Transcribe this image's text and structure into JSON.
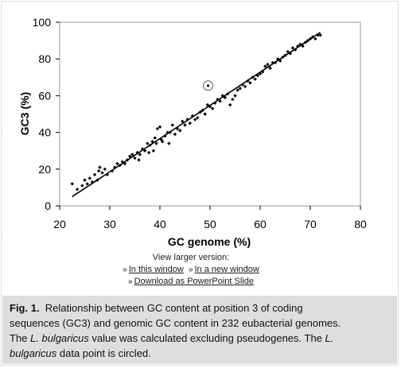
{
  "chart_data": {
    "type": "scatter",
    "xlabel": "GC genome (%)",
    "ylabel": "GC3 (%)",
    "xlim": [
      20,
      80
    ],
    "ylim": [
      0,
      100
    ],
    "xticks": [
      "20",
      "30",
      "40",
      "50",
      "60",
      "70",
      "80"
    ],
    "yticks": [
      "0",
      "20",
      "40",
      "60",
      "80",
      "100"
    ],
    "highlight_point": {
      "x": 49.6,
      "y": 65.5,
      "label": "L. bulgaricus (circled)"
    },
    "trendline": {
      "x": [
        22.5,
        72
      ],
      "y": [
        5,
        94.5
      ]
    },
    "points": [
      [
        22.5,
        12
      ],
      [
        23.5,
        9
      ],
      [
        24.5,
        11
      ],
      [
        25,
        14
      ],
      [
        25.5,
        12
      ],
      [
        26,
        15
      ],
      [
        26.5,
        13
      ],
      [
        27,
        17
      ],
      [
        27.5,
        14
      ],
      [
        27.8,
        19
      ],
      [
        28,
        21
      ],
      [
        28.5,
        18
      ],
      [
        29,
        20
      ],
      [
        29.5,
        17
      ],
      [
        30.5,
        19
      ],
      [
        31,
        21
      ],
      [
        31.5,
        23
      ],
      [
        32,
        22
      ],
      [
        32.5,
        24
      ],
      [
        33,
        23
      ],
      [
        33.5,
        25
      ],
      [
        34,
        27
      ],
      [
        34.5,
        28
      ],
      [
        35,
        26
      ],
      [
        35.5,
        29
      ],
      [
        35.8,
        25
      ],
      [
        36,
        28
      ],
      [
        36.5,
        31
      ],
      [
        37,
        30
      ],
      [
        37.5,
        34
      ],
      [
        37.8,
        29
      ],
      [
        38,
        33
      ],
      [
        38.5,
        35
      ],
      [
        38.7,
        30
      ],
      [
        39,
        37
      ],
      [
        39.3,
        34
      ],
      [
        39.5,
        42
      ],
      [
        40,
        43
      ],
      [
        40.3,
        36
      ],
      [
        40.5,
        35
      ],
      [
        41,
        38
      ],
      [
        41.5,
        40
      ],
      [
        41.8,
        34
      ],
      [
        42,
        40
      ],
      [
        42.5,
        44
      ],
      [
        43,
        39
      ],
      [
        43.5,
        42
      ],
      [
        44,
        41
      ],
      [
        44.5,
        46
      ],
      [
        45,
        44
      ],
      [
        45.5,
        47
      ],
      [
        46,
        45
      ],
      [
        46.5,
        49
      ],
      [
        47,
        47
      ],
      [
        47.5,
        48
      ],
      [
        48,
        51
      ],
      [
        48.5,
        52
      ],
      [
        49,
        50
      ],
      [
        49.5,
        55
      ],
      [
        50,
        54
      ],
      [
        50.5,
        53
      ],
      [
        51,
        56
      ],
      [
        51.5,
        58
      ],
      [
        52,
        57
      ],
      [
        52.5,
        60
      ],
      [
        53,
        59
      ],
      [
        53.5,
        61
      ],
      [
        54,
        55
      ],
      [
        54.5,
        58
      ],
      [
        55,
        60
      ],
      [
        55.5,
        63
      ],
      [
        56,
        64
      ],
      [
        56.5,
        66
      ],
      [
        57,
        65
      ],
      [
        57.5,
        68
      ],
      [
        58,
        67
      ],
      [
        58.5,
        70
      ],
      [
        59,
        69
      ],
      [
        59.5,
        71
      ],
      [
        60,
        72
      ],
      [
        60.5,
        73
      ],
      [
        61,
        76
      ],
      [
        61.5,
        77
      ],
      [
        62,
        75
      ],
      [
        62.5,
        78
      ],
      [
        63,
        78
      ],
      [
        63.5,
        80
      ],
      [
        64,
        79
      ],
      [
        64.5,
        81
      ],
      [
        65,
        82
      ],
      [
        65.5,
        84
      ],
      [
        66,
        83
      ],
      [
        66.5,
        86
      ],
      [
        67,
        85
      ],
      [
        67.5,
        87
      ],
      [
        68,
        88
      ],
      [
        68.5,
        87
      ],
      [
        69,
        89
      ],
      [
        69.5,
        90
      ],
      [
        70,
        91
      ],
      [
        70.5,
        92
      ],
      [
        71,
        91
      ],
      [
        71.5,
        93
      ],
      [
        72,
        93
      ]
    ]
  },
  "view_larger": {
    "title": "View larger version:",
    "links": [
      {
        "arrow": "»",
        "text": "In this window"
      },
      {
        "arrow": "»",
        "text": "In a new window"
      },
      {
        "arrow": "»",
        "text": "Download as PowerPoint Slide"
      }
    ]
  },
  "caption": {
    "fig": "Fig. 1.",
    "line1": "Relationship between GC content at position 3 of coding",
    "line2": "sequences (GC3) and genomic GC content in 232 eubacterial genomes.",
    "line3a": "The ",
    "species": "L. bulgaricus",
    "line3b": " value was calculated excluding pseudogenes. The ",
    "line4_species": "L.",
    "line4a": "bulgaricus",
    "line4b": " data point is circled."
  }
}
